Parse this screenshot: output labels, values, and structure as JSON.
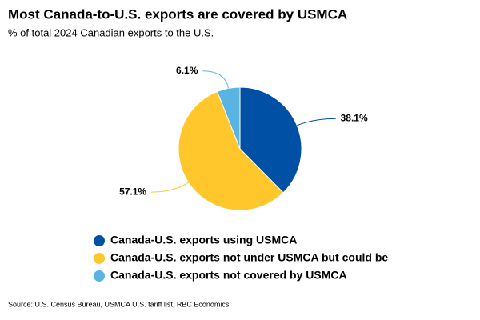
{
  "chart_data": {
    "type": "pie",
    "title": "Most Canada-to-U.S. exports are covered by USMCA",
    "subtitle": "% of total 2024 Canadian exports to the U.S.",
    "categories": [
      "Canada-U.S. exports using USMCA",
      "Canada-U.S. exports not under USMCA but could be",
      "Canada-U.S. exports not covered by USMCA"
    ],
    "values": [
      38.1,
      57.1,
      6.1
    ],
    "value_labels": [
      "38.1%",
      "57.1%",
      "6.1%"
    ],
    "colors": [
      "#0050a5",
      "#ffc72c",
      "#5ab4e1"
    ],
    "source": "Source: U.S. Census Bureau, USMCA U.S. tariff list, RBC Economics"
  }
}
